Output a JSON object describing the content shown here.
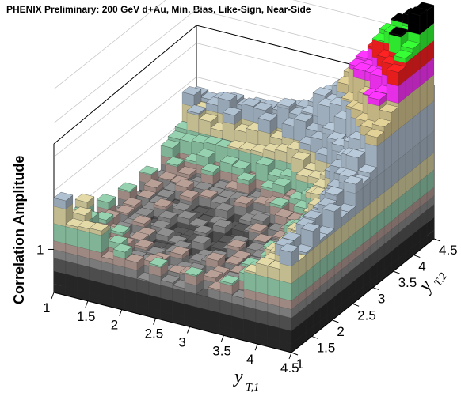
{
  "chart_data": {
    "type": "lego3d",
    "title": "PHENIX Preliminary: 200 GeV d+Au, Min. Bias, Like-Sign, Near-Side",
    "zlabel": "Correlation Amplitude",
    "xlabel": {
      "main": "y",
      "sub": "T,1"
    },
    "ylabel": {
      "main": "y",
      "sub": "T,2"
    },
    "x_ticks": [
      "1",
      "1.5",
      "2",
      "2.5",
      "3",
      "3.5",
      "4",
      "4.5"
    ],
    "y_ticks": [
      "1",
      "1.5",
      "2",
      "2.5",
      "3",
      "3.5",
      "4",
      "4.5"
    ],
    "z_ticks": [
      "1"
    ],
    "xlim": [
      1,
      4.5
    ],
    "ylim": [
      1,
      4.5
    ],
    "zlim": [
      0.9,
      1.45
    ],
    "nbins": 20,
    "surface_description_levels": {
      "low_pairs_peak": 1.1,
      "valley_min": 0.97,
      "high_pairs_peak": 1.42
    },
    "palette": [
      "#2a2a2a",
      "#555555",
      "#888888",
      "#b09890",
      "#8fc8a8",
      "#d8d0a0",
      "#a8b8c8",
      "#b0c0d0",
      "#d8c890",
      "#ff33ff",
      "#ff2020",
      "#33ff33",
      "#000000"
    ]
  }
}
